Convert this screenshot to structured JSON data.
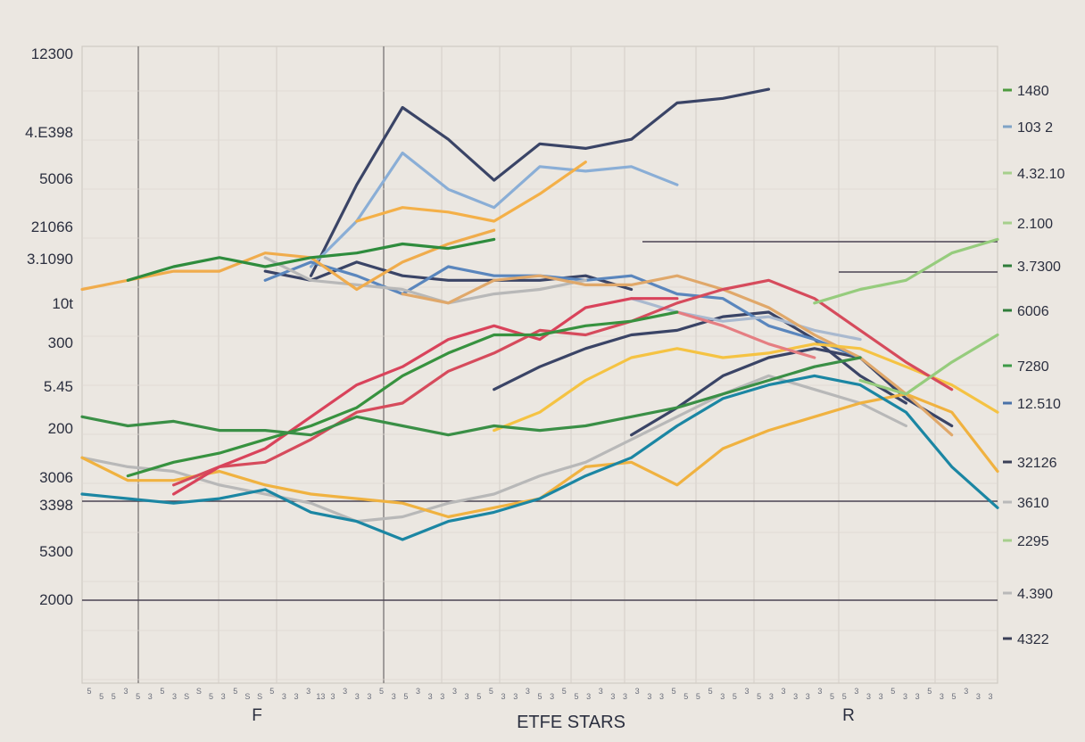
{
  "chart_data": {
    "type": "line",
    "title": "ETFE STARS",
    "xlabel": "",
    "ylabel": "",
    "category_labels": [
      "F",
      "R"
    ],
    "grid": true,
    "legend": "none",
    "y_ticks_left": [
      "12300",
      "4.E398",
      "5006",
      "21066",
      "3.1090",
      "10t",
      "300",
      "5.45",
      "200",
      "3006",
      "3398",
      "5300",
      "2000"
    ],
    "y_ticks_right": [
      "1480",
      "103 2",
      "4.32.10",
      "2.100",
      "3.7300",
      "6006",
      "7280",
      "12.510",
      "32126",
      "3610",
      "2295",
      "4.390",
      "4322"
    ],
    "right_marker_colors": [
      "#4e9b3f",
      "#7fa3c6",
      "#a6cf8c",
      "#a6cf8c",
      "#2f7d3a",
      "#2f7d3a",
      "#3d9a48",
      "#4a72a8",
      "#3a3f57",
      "#b9b9b9",
      "#a6cf8c",
      "#b9b9b9",
      "#3a3f57"
    ],
    "x_tick_labels": [
      "5",
      "5",
      "5",
      "3",
      "5",
      "3",
      "5",
      "3",
      "S",
      "S",
      "5",
      "3",
      "5",
      "S",
      "S",
      "5",
      "3",
      "3",
      "3",
      "13",
      "3",
      "3",
      "3",
      "3",
      "5",
      "3",
      "5",
      "3",
      "3",
      "3",
      "3",
      "3",
      "5",
      "5",
      "3",
      "3",
      "3",
      "5",
      "3",
      "5",
      "5",
      "3",
      "3",
      "3",
      "3",
      "3",
      "3",
      "3",
      "5",
      "5",
      "5",
      "5",
      "3",
      "5",
      "3",
      "5",
      "3",
      "3",
      "3",
      "3",
      "3",
      "5",
      "5",
      "3",
      "3",
      "3",
      "5",
      "3",
      "3",
      "5",
      "3",
      "5",
      "3",
      "3",
      "3"
    ],
    "x": [
      0,
      5,
      10,
      15,
      20,
      25,
      30,
      35,
      40,
      45,
      50,
      55,
      60,
      65,
      70,
      75,
      80,
      85,
      90,
      95,
      100
    ],
    "ylim": [
      0,
      100
    ],
    "series": [
      {
        "color": "#3a4466",
        "values": [
          null,
          null,
          null,
          null,
          null,
          null,
          null,
          null,
          null,
          null,
          null,
          null,
          null,
          null,
          null,
          null,
          null,
          null,
          null,
          null,
          null
        ]
      },
      {
        "color": "#3a4466",
        "values": [
          null,
          null,
          null,
          null,
          null,
          58,
          78,
          95,
          88,
          79,
          87,
          86,
          88,
          96,
          97,
          99,
          null,
          null,
          null,
          null,
          null
        ]
      },
      {
        "color": "#3a4466",
        "values": [
          null,
          null,
          null,
          null,
          59,
          57,
          61,
          58,
          57,
          57,
          57,
          58,
          55,
          null,
          null,
          null,
          null,
          null,
          null,
          null,
          null
        ]
      },
      {
        "color": "#3a4466",
        "values": [
          null,
          null,
          null,
          null,
          null,
          null,
          null,
          null,
          null,
          33,
          38,
          42,
          45,
          46,
          49,
          50,
          44,
          36,
          30,
          null,
          null
        ]
      },
      {
        "color": "#3a4466",
        "values": [
          null,
          null,
          null,
          null,
          null,
          null,
          null,
          null,
          null,
          null,
          null,
          null,
          23,
          29,
          36,
          40,
          42,
          40,
          31,
          25,
          null
        ]
      },
      {
        "color": "#8aaed6",
        "values": [
          null,
          null,
          null,
          null,
          null,
          60,
          70,
          85,
          77,
          73,
          82,
          81,
          82,
          78,
          null,
          null,
          null,
          null,
          null,
          null,
          null
        ]
      },
      {
        "color": "#5a86bd",
        "values": [
          null,
          null,
          null,
          null,
          57,
          61,
          58,
          54,
          60,
          58,
          58,
          57,
          58,
          54,
          53,
          47,
          44,
          40,
          null,
          null,
          null
        ]
      },
      {
        "color": "#a9b9cf",
        "values": [
          null,
          null,
          null,
          null,
          null,
          null,
          null,
          null,
          null,
          null,
          null,
          null,
          53,
          50,
          48,
          49,
          46,
          44,
          null,
          null,
          null
        ]
      },
      {
        "color": "#b8b8b8",
        "values": [
          null,
          null,
          null,
          null,
          62,
          57,
          56,
          55,
          52,
          54,
          55,
          57,
          null,
          null,
          null,
          null,
          null,
          null,
          null,
          null,
          null
        ]
      },
      {
        "color": "#b8b8b8",
        "values": [
          18,
          16,
          15,
          12,
          10,
          8,
          4,
          5,
          8,
          10,
          14,
          17,
          22,
          27,
          32,
          36,
          33,
          30,
          25,
          null,
          null
        ]
      },
      {
        "color": "#e0a86a",
        "values": [
          null,
          null,
          null,
          null,
          null,
          null,
          null,
          54,
          52,
          57,
          58,
          56,
          56,
          58,
          55,
          51,
          45,
          40,
          32,
          23,
          null
        ]
      },
      {
        "color": "#f0ac4c",
        "values": [
          55,
          57,
          59,
          59,
          63,
          62,
          55,
          61,
          65,
          68,
          null,
          null,
          null,
          null,
          null,
          null,
          null,
          null,
          null,
          null,
          null
        ]
      },
      {
        "color": "#f0b240",
        "values": [
          18,
          13,
          13,
          15,
          12,
          10,
          9,
          8,
          5,
          7,
          9,
          16,
          17,
          12,
          20,
          24,
          27,
          30,
          32,
          28,
          15
        ]
      },
      {
        "color": "#f5c343",
        "values": [
          null,
          null,
          null,
          null,
          null,
          null,
          null,
          null,
          null,
          24,
          28,
          35,
          40,
          42,
          40,
          41,
          43,
          42,
          38,
          34,
          28
        ]
      },
      {
        "color": "#f4b048",
        "values": [
          null,
          null,
          null,
          null,
          null,
          null,
          70,
          73,
          72,
          70,
          76,
          83,
          null,
          null,
          null,
          null,
          null,
          null,
          null,
          null,
          null
        ]
      },
      {
        "color": "#d64b5c",
        "values": [
          null,
          null,
          12,
          16,
          17,
          22,
          28,
          30,
          37,
          41,
          46,
          45,
          48,
          52,
          55,
          57,
          53,
          46,
          39,
          33,
          null
        ]
      },
      {
        "color": "#e57e82",
        "values": [
          null,
          null,
          null,
          null,
          null,
          null,
          null,
          null,
          null,
          null,
          null,
          null,
          null,
          50,
          47,
          43,
          40,
          null,
          null,
          null,
          null
        ]
      },
      {
        "color": "#d9435b",
        "values": [
          null,
          null,
          10,
          16,
          20,
          27,
          34,
          38,
          44,
          47,
          44,
          51,
          53,
          53,
          null,
          null,
          null,
          null,
          null,
          null,
          null
        ]
      },
      {
        "color": "#37923f",
        "values": [
          null,
          14,
          17,
          19,
          22,
          25,
          29,
          36,
          41,
          45,
          45,
          47,
          48,
          50,
          null,
          null,
          null,
          null,
          null,
          null,
          null
        ]
      },
      {
        "color": "#3a8f46",
        "values": [
          27,
          25,
          26,
          24,
          24,
          23,
          27,
          25,
          23,
          25,
          24,
          25,
          27,
          29,
          32,
          35,
          38,
          40,
          null,
          null,
          null
        ]
      },
      {
        "color": "#2e8c3d",
        "values": [
          null,
          57,
          60,
          62,
          60,
          62,
          63,
          65,
          64,
          66,
          null,
          null,
          null,
          null,
          null,
          null,
          null,
          null,
          null,
          null,
          null
        ]
      },
      {
        "color": "#96cc7d",
        "values": [
          null,
          null,
          null,
          null,
          null,
          null,
          null,
          null,
          null,
          null,
          null,
          null,
          null,
          null,
          null,
          null,
          52,
          55,
          57,
          63,
          66
        ]
      },
      {
        "color": "#96cc7d",
        "values": [
          null,
          null,
          null,
          null,
          null,
          null,
          null,
          null,
          null,
          null,
          null,
          null,
          null,
          null,
          null,
          null,
          null,
          35,
          32,
          39,
          45
        ]
      },
      {
        "color": "#1b86a3",
        "values": [
          10,
          9,
          8,
          9,
          11,
          6,
          4,
          0,
          4,
          6,
          9,
          14,
          18,
          25,
          31,
          34,
          36,
          34,
          28,
          16,
          7
        ]
      }
    ]
  }
}
